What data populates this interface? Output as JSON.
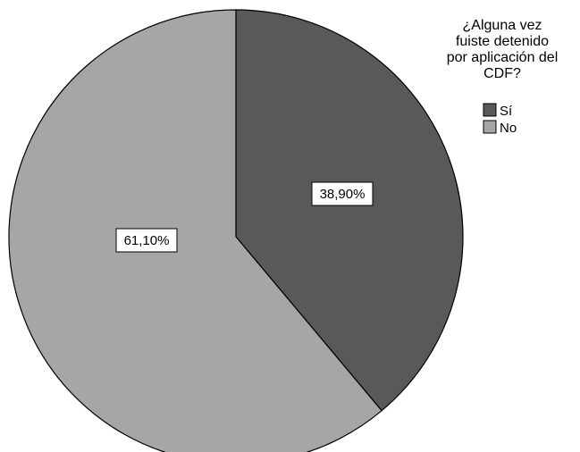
{
  "chart_data": {
    "type": "pie",
    "title": "",
    "legend": {
      "title": "¿Alguna vez fuiste detenido por aplicación del CDF?",
      "title_lines": [
        "¿Alguna vez",
        "fuiste detenido",
        "por aplicación del",
        "CDF?"
      ],
      "placement": "top-right"
    },
    "slices": [
      {
        "label": "Sí",
        "value": 38.9,
        "display": "38,90%",
        "color": "#595959"
      },
      {
        "label": "No",
        "value": 61.1,
        "display": "61,10%",
        "color": "#a6a6a6"
      }
    ],
    "start_angle_deg": 0,
    "direction": "clockwise",
    "slice_border_color": "#000000"
  }
}
